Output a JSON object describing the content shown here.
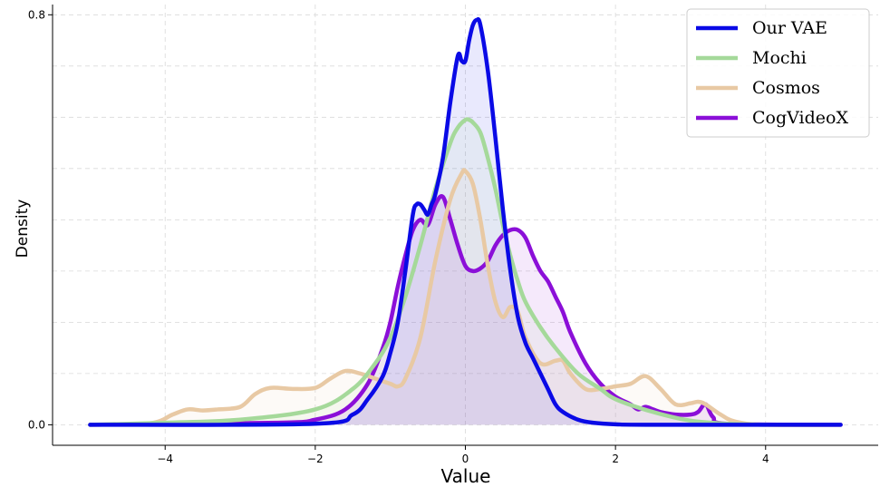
{
  "chart_data": {
    "type": "line",
    "title": "",
    "xlabel": "Value",
    "ylabel": "Density",
    "xlim": [
      -5.5,
      5.5
    ],
    "ylim": [
      -0.04,
      0.82
    ],
    "x_ticks": [
      -4,
      -2,
      0,
      2,
      4
    ],
    "x_tick_labels": [
      "−4",
      "−2",
      "0",
      "2",
      "4"
    ],
    "y_ticks": [
      0.0,
      0.8
    ],
    "y_tick_labels": [
      "0.0",
      "0.8"
    ],
    "grid": true,
    "legend_position": "top-right",
    "series": [
      {
        "name": "Our VAE",
        "color": "#0a0ae6",
        "fill": true,
        "x": [
          -5,
          -2.0,
          -1.5,
          -1.3,
          -1.1,
          -1.0,
          -0.9,
          -0.8,
          -0.7,
          -0.65,
          -0.6,
          -0.55,
          -0.5,
          -0.45,
          -0.4,
          -0.3,
          -0.2,
          -0.1,
          -0.05,
          0.0,
          0.05,
          0.1,
          0.15,
          0.2,
          0.3,
          0.4,
          0.5,
          0.6,
          0.7,
          0.8,
          0.9,
          1.0,
          1.1,
          1.2,
          1.3,
          1.5,
          1.7,
          2.0,
          2.5,
          5.0
        ],
        "y": [
          0,
          0.002,
          0.02,
          0.05,
          0.095,
          0.14,
          0.2,
          0.3,
          0.41,
          0.43,
          0.43,
          0.42,
          0.41,
          0.43,
          0.45,
          0.52,
          0.63,
          0.72,
          0.71,
          0.71,
          0.75,
          0.78,
          0.79,
          0.78,
          0.69,
          0.56,
          0.42,
          0.3,
          0.21,
          0.16,
          0.13,
          0.1,
          0.07,
          0.04,
          0.025,
          0.01,
          0.004,
          0.001,
          0,
          0
        ]
      },
      {
        "name": "Mochi",
        "color": "#a5d99a",
        "fill": true,
        "x": [
          -5,
          -4,
          -3,
          -2.0,
          -1.5,
          -1.2,
          -1.0,
          -0.8,
          -0.6,
          -0.4,
          -0.2,
          -0.1,
          0.0,
          0.05,
          0.1,
          0.2,
          0.3,
          0.4,
          0.5,
          0.6,
          0.7,
          0.8,
          1.0,
          1.2,
          1.5,
          1.8,
          2.0,
          2.5,
          3.0,
          3.5,
          4.0
        ],
        "y": [
          0,
          0.004,
          0.01,
          0.03,
          0.07,
          0.12,
          0.17,
          0.25,
          0.35,
          0.46,
          0.55,
          0.58,
          0.595,
          0.595,
          0.59,
          0.57,
          0.52,
          0.46,
          0.39,
          0.33,
          0.28,
          0.24,
          0.19,
          0.15,
          0.1,
          0.07,
          0.05,
          0.025,
          0.008,
          0.002,
          0
        ]
      },
      {
        "name": "Cosmos",
        "color": "#e8c9a4",
        "fill": true,
        "x": [
          -5,
          -4.2,
          -3.9,
          -3.7,
          -3.5,
          -3.3,
          -3.0,
          -2.8,
          -2.6,
          -2.3,
          -2.0,
          -1.8,
          -1.6,
          -1.4,
          -1.2,
          -1.0,
          -0.9,
          -0.8,
          -0.6,
          -0.4,
          -0.2,
          -0.05,
          0.0,
          0.1,
          0.2,
          0.3,
          0.4,
          0.5,
          0.6,
          0.7,
          0.8,
          1.0,
          1.2,
          1.3,
          1.4,
          1.6,
          1.8,
          2.0,
          2.2,
          2.4,
          2.6,
          2.8,
          3.0,
          3.1,
          3.2,
          3.4,
          3.6,
          4.0,
          5.0
        ],
        "y": [
          0,
          0.003,
          0.02,
          0.03,
          0.028,
          0.03,
          0.035,
          0.06,
          0.072,
          0.07,
          0.072,
          0.09,
          0.105,
          0.1,
          0.09,
          0.08,
          0.075,
          0.09,
          0.17,
          0.32,
          0.44,
          0.49,
          0.495,
          0.47,
          0.4,
          0.31,
          0.24,
          0.21,
          0.23,
          0.22,
          0.17,
          0.12,
          0.125,
          0.125,
          0.1,
          0.07,
          0.07,
          0.075,
          0.08,
          0.095,
          0.07,
          0.04,
          0.042,
          0.045,
          0.04,
          0.02,
          0.006,
          0,
          0
        ]
      },
      {
        "name": "CogVideoX",
        "color": "#8b0fd8",
        "fill": true,
        "x": [
          -5,
          -2.5,
          -2.0,
          -1.6,
          -1.3,
          -1.1,
          -1.0,
          -0.9,
          -0.8,
          -0.7,
          -0.6,
          -0.5,
          -0.4,
          -0.3,
          -0.2,
          -0.1,
          0.0,
          0.1,
          0.2,
          0.3,
          0.4,
          0.5,
          0.6,
          0.7,
          0.8,
          0.9,
          1.0,
          1.1,
          1.2,
          1.3,
          1.4,
          1.6,
          1.8,
          2.0,
          2.2,
          2.3,
          2.4,
          2.5,
          2.6,
          2.8,
          3.0,
          3.1,
          3.2,
          3.3,
          3.5,
          5.0
        ],
        "y": [
          0,
          0.004,
          0.01,
          0.03,
          0.08,
          0.15,
          0.2,
          0.27,
          0.33,
          0.38,
          0.4,
          0.39,
          0.43,
          0.445,
          0.4,
          0.35,
          0.31,
          0.3,
          0.305,
          0.32,
          0.35,
          0.37,
          0.38,
          0.38,
          0.365,
          0.33,
          0.3,
          0.28,
          0.25,
          0.22,
          0.18,
          0.12,
          0.08,
          0.055,
          0.04,
          0.03,
          0.035,
          0.03,
          0.025,
          0.02,
          0.02,
          0.025,
          0.04,
          0.015,
          0.002,
          0
        ]
      }
    ]
  }
}
